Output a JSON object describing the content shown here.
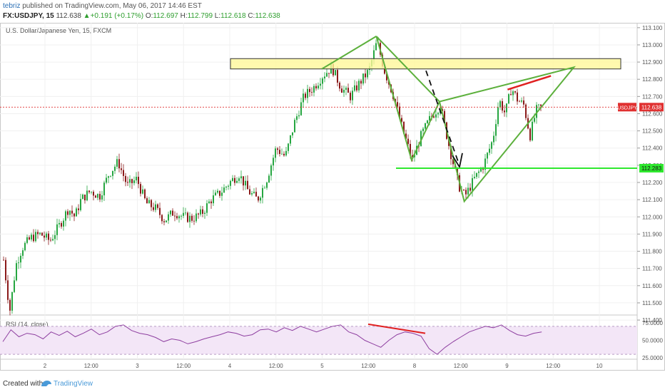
{
  "header": {
    "author": "tebriz",
    "published_text": " published on TradingView.com, May 06, 2017 14:46 EST",
    "symbol": "FX:USDJPY, 15",
    "last_price": "112.638",
    "change": "+0.191 (+0.17%)",
    "open_label": "O:",
    "open": "112.697",
    "high_label": "H:",
    "high": "112.799",
    "low_label": "L:",
    "low": "112.618",
    "close_label": "C:",
    "close": "112.638"
  },
  "footer": {
    "created_with": "Created with",
    "brand": "TradingView"
  },
  "chart_data": {
    "type": "candlestick",
    "title": "U.S. Dollar/Japanese Yen, 15, FXCM",
    "ylim": [
      111.45,
      113.12
    ],
    "y_ticks": [
      "113.100",
      "113.000",
      "112.900",
      "112.800",
      "112.700",
      "112.600",
      "112.500",
      "112.400",
      "112.300",
      "112.200",
      "112.100",
      "112.000",
      "111.900",
      "111.800",
      "111.700",
      "111.600",
      "111.500",
      "111.400"
    ],
    "x_tick_labels": [
      "2",
      "12:00",
      "3",
      "12:00",
      "4",
      "12:00",
      "5",
      "12:00",
      "8",
      "12:00",
      "9",
      "12:00",
      "10"
    ],
    "price_path": [
      [
        0.0,
        111.75
      ],
      [
        0.01,
        111.45
      ],
      [
        0.02,
        111.72
      ],
      [
        0.03,
        111.82
      ],
      [
        0.045,
        111.88
      ],
      [
        0.06,
        111.9
      ],
      [
        0.075,
        111.86
      ],
      [
        0.09,
        111.95
      ],
      [
        0.105,
        112.05
      ],
      [
        0.115,
        112.0
      ],
      [
        0.125,
        112.1
      ],
      [
        0.14,
        112.15
      ],
      [
        0.155,
        112.12
      ],
      [
        0.17,
        112.25
      ],
      [
        0.185,
        112.32
      ],
      [
        0.2,
        112.18
      ],
      [
        0.215,
        112.22
      ],
      [
        0.23,
        112.08
      ],
      [
        0.245,
        112.05
      ],
      [
        0.26,
        111.98
      ],
      [
        0.275,
        112.03
      ],
      [
        0.29,
        112.0
      ],
      [
        0.305,
        111.99
      ],
      [
        0.32,
        112.02
      ],
      [
        0.335,
        112.1
      ],
      [
        0.35,
        112.14
      ],
      [
        0.365,
        112.2
      ],
      [
        0.38,
        112.25
      ],
      [
        0.395,
        112.15
      ],
      [
        0.41,
        112.1
      ],
      [
        0.425,
        112.22
      ],
      [
        0.44,
        112.4
      ],
      [
        0.455,
        112.35
      ],
      [
        0.47,
        112.55
      ],
      [
        0.485,
        112.7
      ],
      [
        0.5,
        112.75
      ],
      [
        0.515,
        112.82
      ],
      [
        0.53,
        112.87
      ],
      [
        0.545,
        112.75
      ],
      [
        0.56,
        112.7
      ],
      [
        0.575,
        112.78
      ],
      [
        0.59,
        112.85
      ],
      [
        0.603,
        113.02
      ],
      [
        0.615,
        112.85
      ],
      [
        0.63,
        112.7
      ],
      [
        0.645,
        112.5
      ],
      [
        0.66,
        112.33
      ],
      [
        0.675,
        112.48
      ],
      [
        0.69,
        112.58
      ],
      [
        0.705,
        112.65
      ],
      [
        0.72,
        112.4
      ],
      [
        0.735,
        112.18
      ],
      [
        0.745,
        112.12
      ],
      [
        0.76,
        112.22
      ],
      [
        0.775,
        112.3
      ],
      [
        0.79,
        112.45
      ],
      [
        0.8,
        112.68
      ],
      [
        0.81,
        112.6
      ],
      [
        0.82,
        112.75
      ],
      [
        0.83,
        112.68
      ],
      [
        0.84,
        112.65
      ],
      [
        0.85,
        112.47
      ],
      [
        0.86,
        112.62
      ],
      [
        0.87,
        112.64
      ]
    ],
    "current_price_label": "USDJPY",
    "current_price": "112.638",
    "target_price": "112.283",
    "target_price_label": "112.283",
    "annotations": {
      "resistance_zone": [
        112.86,
        112.92
      ],
      "target_line": 112.283
    },
    "rsi": {
      "label": "RSI (14, close)",
      "ylim": [
        25,
        80
      ],
      "y_ticks": [
        "75.0000",
        "50.0000",
        "25.0000"
      ],
      "band": [
        30,
        70
      ],
      "values": [
        48,
        65,
        55,
        60,
        58,
        52,
        62,
        57,
        63,
        55,
        60,
        66,
        58,
        62,
        70,
        72,
        64,
        60,
        58,
        54,
        48,
        52,
        50,
        45,
        48,
        52,
        55,
        58,
        62,
        60,
        56,
        58,
        65,
        66,
        62,
        68,
        64,
        70,
        66,
        62,
        66,
        70,
        72,
        62,
        58,
        50,
        45,
        40,
        50,
        58,
        62,
        60,
        56,
        38,
        30,
        40,
        48,
        55,
        62,
        66,
        70,
        68,
        72,
        64,
        58,
        56,
        60,
        62
      ]
    }
  }
}
